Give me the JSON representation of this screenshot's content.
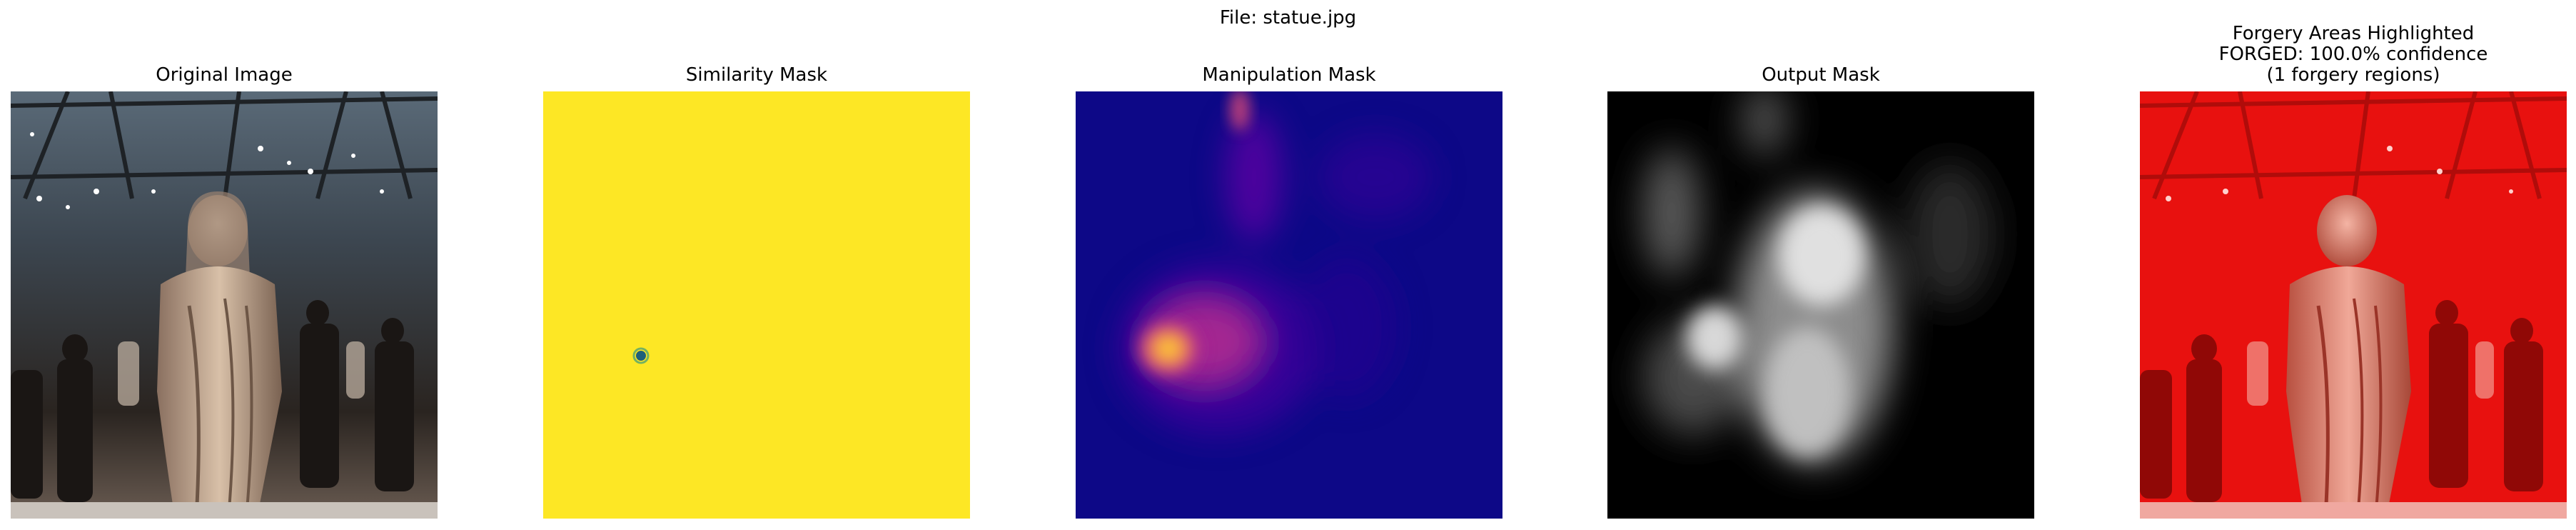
{
  "suptitle": "File: statue.jpg",
  "panels": [
    {
      "title_lines": [
        "Original Image"
      ]
    },
    {
      "title_lines": [
        "Similarity Mask"
      ]
    },
    {
      "title_lines": [
        "Manipulation Mask"
      ]
    },
    {
      "title_lines": [
        "Output Mask"
      ]
    },
    {
      "title_lines": [
        "Forgery Areas Highlighted",
        "FORGED: 100.0% confidence",
        "(1 forgery regions)"
      ]
    }
  ],
  "colors": {
    "similarity_fill": "#fde725",
    "similarity_dot": "#1f5f7a",
    "plasma_base": "#0d0887",
    "forgery_tint": "#e8110f"
  }
}
